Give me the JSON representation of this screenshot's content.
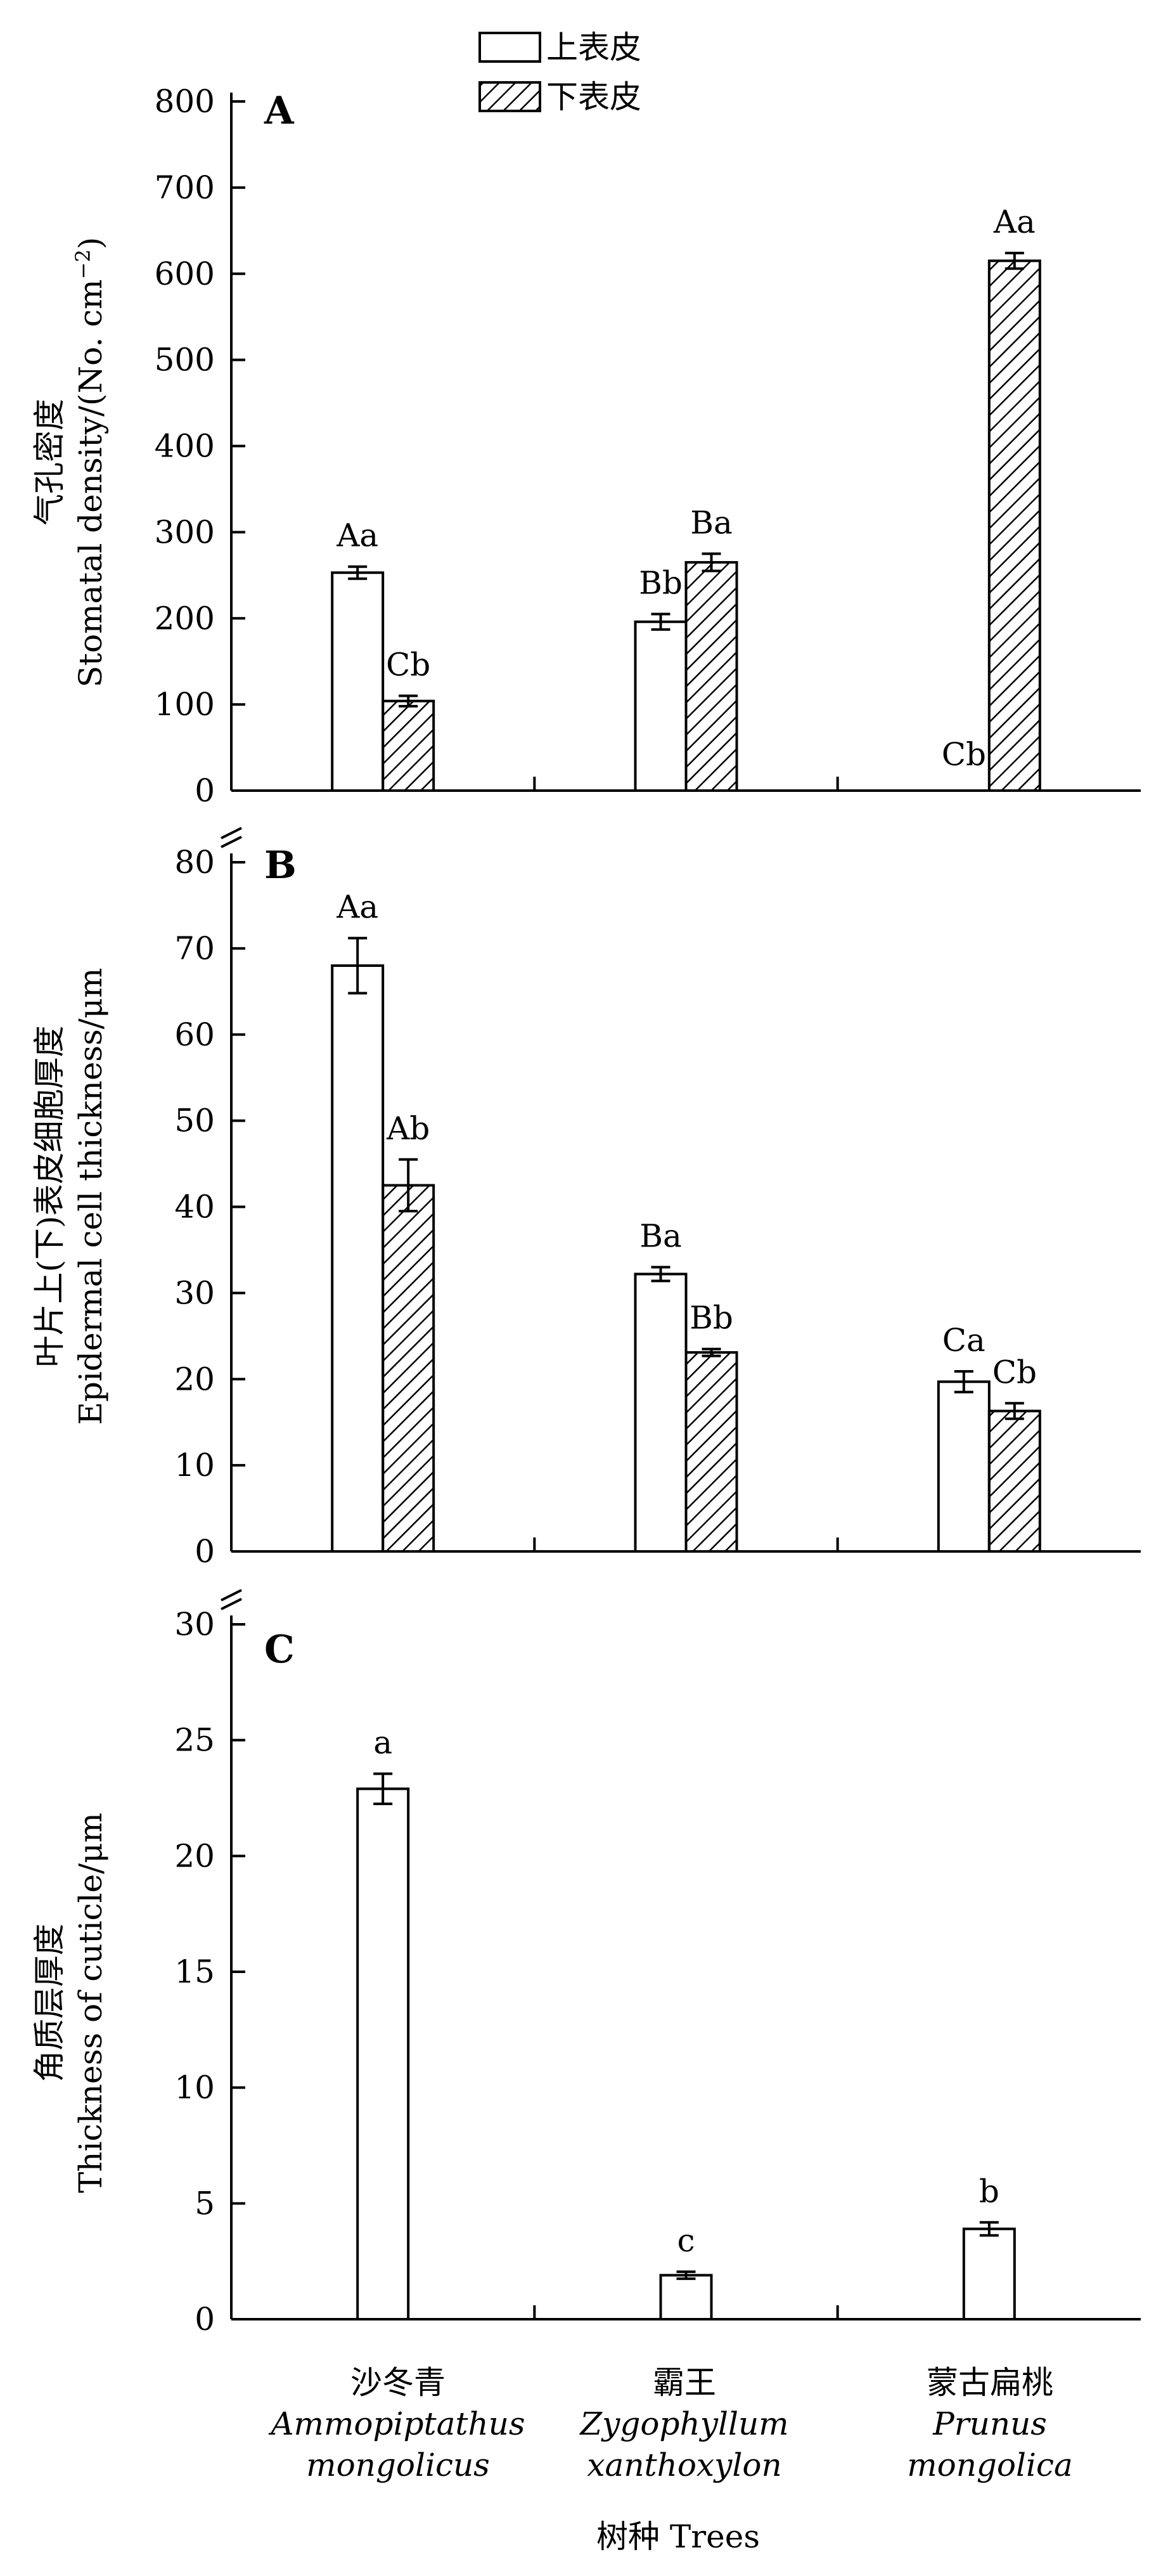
{
  "legend": {
    "items": [
      {
        "label": "上表皮",
        "pattern": "open"
      },
      {
        "label": "下表皮",
        "pattern": "hatched"
      }
    ],
    "placement": "top-center"
  },
  "x_axis": {
    "title": "树种 Trees",
    "categories": [
      {
        "cn": "沙冬青",
        "latin1": "Ammopiptathus",
        "latin2": "mongolicus"
      },
      {
        "cn": "霸王",
        "latin1": "Zygophyllum",
        "latin2": "xanthoxylon"
      },
      {
        "cn": "蒙古扁桃",
        "latin1": "Prunus",
        "latin2": "mongolica"
      }
    ]
  },
  "chart_data": [
    {
      "panel": "A",
      "type": "bar",
      "ylabel_cn": "气孔密度",
      "ylabel_en": "Stomatal density/(No. cm",
      "ylabel_sup": "−2",
      "ylabel_end": ")",
      "ylim": [
        0,
        800
      ],
      "yticks": [
        0,
        100,
        200,
        300,
        400,
        500,
        600,
        700,
        800
      ],
      "categories": [
        "沙冬青",
        "霸王",
        "蒙古扁桃"
      ],
      "series": [
        {
          "name": "上表皮",
          "values": [
            253,
            196,
            0
          ],
          "errors": [
            7,
            9,
            0
          ],
          "labels": [
            "Aa",
            "Bb",
            "Cb"
          ]
        },
        {
          "name": "下表皮",
          "values": [
            104,
            265,
            615
          ],
          "errors": [
            6,
            10,
            9
          ],
          "labels": [
            "Cb",
            "Ba",
            "Aa"
          ]
        }
      ]
    },
    {
      "panel": "B",
      "type": "bar",
      "ylabel_cn": "叶片上(下)表皮细胞厚度",
      "ylabel_en": "Epidermal cell thickness/μm",
      "ylim": [
        0,
        80
      ],
      "yticks": [
        0,
        10,
        20,
        30,
        40,
        50,
        60,
        70,
        80
      ],
      "categories": [
        "沙冬青",
        "霸王",
        "蒙古扁桃"
      ],
      "series": [
        {
          "name": "上表皮",
          "values": [
            68,
            32.2,
            19.7
          ],
          "errors": [
            3.2,
            0.8,
            1.2
          ],
          "labels": [
            "Aa",
            "Ba",
            "Ca"
          ]
        },
        {
          "name": "下表皮",
          "values": [
            42.5,
            23.1,
            16.3
          ],
          "errors": [
            3,
            0.4,
            0.9
          ],
          "labels": [
            "Ab",
            "Bb",
            "Cb"
          ]
        }
      ]
    },
    {
      "panel": "C",
      "type": "bar",
      "ylabel_cn": "角质层厚度",
      "ylabel_en": "Thickness of cuticle/μm",
      "ylim": [
        0,
        30
      ],
      "yticks": [
        0,
        5,
        10,
        15,
        20,
        25,
        30
      ],
      "categories": [
        "沙冬青",
        "霸王",
        "蒙古扁桃"
      ],
      "series": [
        {
          "name": "上表皮",
          "values": [
            22.9,
            1.9,
            3.9
          ],
          "errors": [
            0.65,
            0.15,
            0.28
          ],
          "labels": [
            "a",
            "c",
            "b"
          ]
        }
      ]
    }
  ]
}
